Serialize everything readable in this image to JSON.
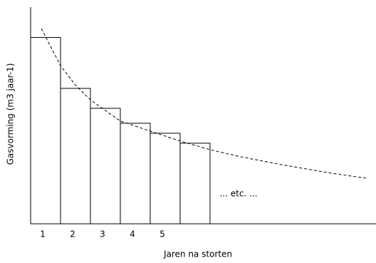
{
  "chart_data": {
    "type": "bar",
    "xlabel": "Jaren na storten",
    "ylabel": "Gasvorming (m3 jaar-1)",
    "annotation": "... etc. ...",
    "categories": [
      "1",
      "2",
      "3",
      "4",
      "5",
      null
    ],
    "values": [
      86,
      62.5,
      53.3,
      46.4,
      41.8,
      37.2
    ],
    "color": "#ffffff",
    "edge_color": "#000000",
    "xlim": [
      0,
      11.55
    ],
    "ylim": [
      0,
      100
    ],
    "curve": {
      "type": "line",
      "dashed": true,
      "color": "#000000",
      "x": [
        0.36,
        1,
        1.5,
        2,
        3,
        4,
        5,
        6,
        7,
        8.5,
        10,
        11.24
      ],
      "values": [
        90.1,
        73,
        64,
        57.2,
        47.4,
        42.8,
        38.2,
        34.2,
        31,
        27,
        23.5,
        21
      ]
    }
  }
}
